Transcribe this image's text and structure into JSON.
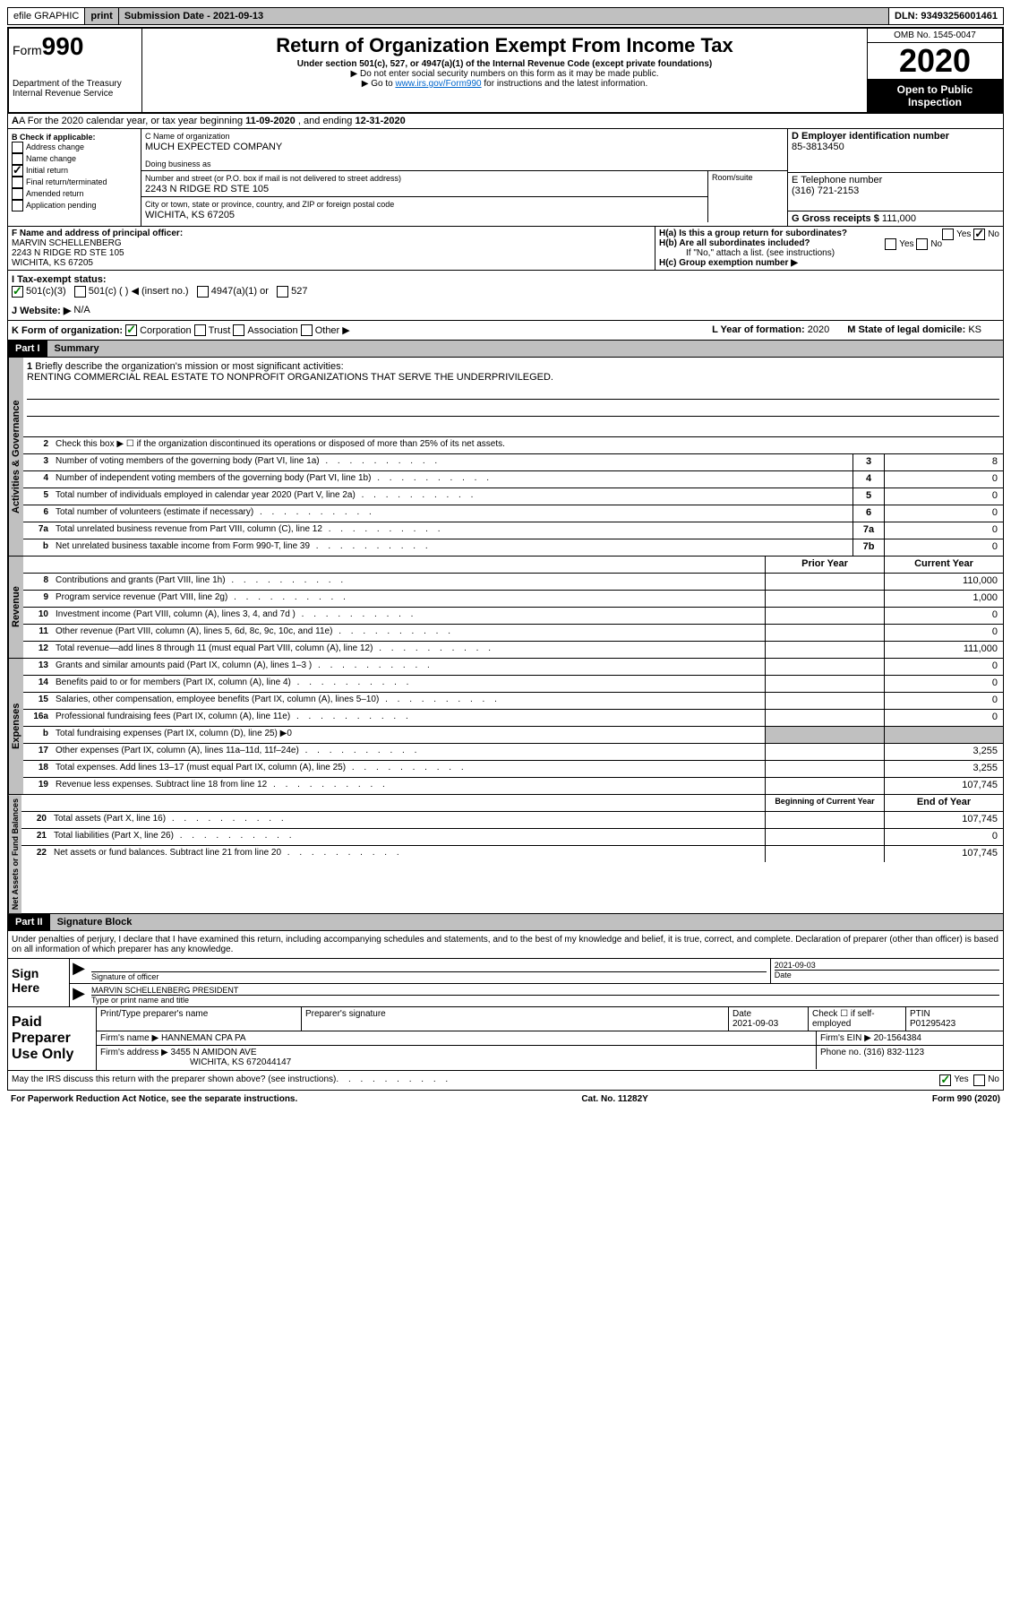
{
  "top": {
    "efile": "efile GRAPHIC",
    "print": "print",
    "submission": "Submission Date - 2021-09-13",
    "dln": "DLN: 93493256001461"
  },
  "header": {
    "form_prefix": "Form",
    "form_num": "990",
    "dept": "Department of the Treasury\nInternal Revenue Service",
    "title": "Return of Organization Exempt From Income Tax",
    "subtitle": "Under section 501(c), 527, or 4947(a)(1) of the Internal Revenue Code (except private foundations)",
    "note1": "▶ Do not enter social security numbers on this form as it may be made public.",
    "note2_pre": "▶ Go to ",
    "note2_link": "www.irs.gov/Form990",
    "note2_post": " for instructions and the latest information.",
    "omb": "OMB No. 1545-0047",
    "year": "2020",
    "open": "Open to Public Inspection"
  },
  "rowA": {
    "text_pre": "A For the 2020 calendar year, or tax year beginning ",
    "begin": "11-09-2020",
    "mid": " , and ending ",
    "end": "12-31-2020"
  },
  "blockB": {
    "label": "B Check if applicable:",
    "items": [
      "Address change",
      "Name change",
      "Initial return",
      "Final return/terminated",
      "Amended return",
      "Application pending"
    ],
    "checked_idx": 2
  },
  "blockC": {
    "name_label": "C Name of organization",
    "name": "MUCH EXPECTED COMPANY",
    "dba_label": "Doing business as",
    "addr_label": "Number and street (or P.O. box if mail is not delivered to street address)",
    "addr": "2243 N RIDGE RD STE 105",
    "room_label": "Room/suite",
    "city_label": "City or town, state or province, country, and ZIP or foreign postal code",
    "city": "WICHITA, KS  67205"
  },
  "blockD": {
    "label": "D Employer identification number",
    "value": "85-3813450"
  },
  "blockE": {
    "label": "E Telephone number",
    "value": "(316) 721-2153"
  },
  "blockG": {
    "label": "G Gross receipts $",
    "value": "111,000"
  },
  "blockF": {
    "label": "F Name and address of principal officer:",
    "name": "MARVIN SCHELLENBERG",
    "addr": "2243 N RIDGE RD STE 105",
    "city": "WICHITA, KS  67205"
  },
  "blockH": {
    "a": "H(a) Is this a group return for subordinates?",
    "b": "H(b) Are all subordinates included?",
    "b_note": "If \"No,\" attach a list. (see instructions)",
    "c": "H(c) Group exemption number ▶"
  },
  "rowI": {
    "label": "I    Tax-exempt status:",
    "opts": [
      "501(c)(3)",
      "501(c) (  ) ◀ (insert no.)",
      "4947(a)(1) or",
      "527"
    ]
  },
  "rowJ": {
    "label": "J    Website: ▶",
    "value": "N/A"
  },
  "rowK": {
    "label": "K Form of organization:",
    "opts": [
      "Corporation",
      "Trust",
      "Association",
      "Other ▶"
    ],
    "l_label": "L Year of formation:",
    "l_val": "2020",
    "m_label": "M State of legal domicile:",
    "m_val": "KS"
  },
  "part1": {
    "header": "Part I",
    "title": "Summary"
  },
  "mission": {
    "num": "1",
    "label": "Briefly describe the organization's mission or most significant activities:",
    "text": "RENTING COMMERCIAL REAL ESTATE TO NONPROFIT ORGANIZATIONS THAT SERVE THE UNDERPRIVILEGED."
  },
  "governance": {
    "side": "Activities & Governance",
    "rows": [
      {
        "n": "2",
        "t": "Check this box ▶ ☐ if the organization discontinued its operations or disposed of more than 25% of its net assets."
      },
      {
        "n": "3",
        "t": "Number of voting members of the governing body (Part VI, line 1a)",
        "c": "3",
        "v": "8"
      },
      {
        "n": "4",
        "t": "Number of independent voting members of the governing body (Part VI, line 1b)",
        "c": "4",
        "v": "0"
      },
      {
        "n": "5",
        "t": "Total number of individuals employed in calendar year 2020 (Part V, line 2a)",
        "c": "5",
        "v": "0"
      },
      {
        "n": "6",
        "t": "Total number of volunteers (estimate if necessary)",
        "c": "6",
        "v": "0"
      },
      {
        "n": "7a",
        "t": "Total unrelated business revenue from Part VIII, column (C), line 12",
        "c": "7a",
        "v": "0"
      },
      {
        "n": "b",
        "t": "Net unrelated business taxable income from Form 990-T, line 39",
        "c": "7b",
        "v": "0"
      }
    ]
  },
  "revenue": {
    "side": "Revenue",
    "header_prior": "Prior Year",
    "header_current": "Current Year",
    "rows": [
      {
        "n": "8",
        "t": "Contributions and grants (Part VIII, line 1h)",
        "p": "",
        "c": "110,000"
      },
      {
        "n": "9",
        "t": "Program service revenue (Part VIII, line 2g)",
        "p": "",
        "c": "1,000"
      },
      {
        "n": "10",
        "t": "Investment income (Part VIII, column (A), lines 3, 4, and 7d )",
        "p": "",
        "c": "0"
      },
      {
        "n": "11",
        "t": "Other revenue (Part VIII, column (A), lines 5, 6d, 8c, 9c, 10c, and 11e)",
        "p": "",
        "c": "0"
      },
      {
        "n": "12",
        "t": "Total revenue—add lines 8 through 11 (must equal Part VIII, column (A), line 12)",
        "p": "",
        "c": "111,000"
      }
    ]
  },
  "expenses": {
    "side": "Expenses",
    "rows": [
      {
        "n": "13",
        "t": "Grants and similar amounts paid (Part IX, column (A), lines 1–3 )",
        "p": "",
        "c": "0"
      },
      {
        "n": "14",
        "t": "Benefits paid to or for members (Part IX, column (A), line 4)",
        "p": "",
        "c": "0"
      },
      {
        "n": "15",
        "t": "Salaries, other compensation, employee benefits (Part IX, column (A), lines 5–10)",
        "p": "",
        "c": "0"
      },
      {
        "n": "16a",
        "t": "Professional fundraising fees (Part IX, column (A), line 11e)",
        "p": "",
        "c": "0"
      },
      {
        "n": "b",
        "t": "Total fundraising expenses (Part IX, column (D), line 25) ▶0",
        "shaded": true
      },
      {
        "n": "17",
        "t": "Other expenses (Part IX, column (A), lines 11a–11d, 11f–24e)",
        "p": "",
        "c": "3,255"
      },
      {
        "n": "18",
        "t": "Total expenses. Add lines 13–17 (must equal Part IX, column (A), line 25)",
        "p": "",
        "c": "3,255"
      },
      {
        "n": "19",
        "t": "Revenue less expenses. Subtract line 18 from line 12",
        "p": "",
        "c": "107,745"
      }
    ]
  },
  "netassets": {
    "side": "Net Assets or Fund Balances",
    "header_begin": "Beginning of Current Year",
    "header_end": "End of Year",
    "rows": [
      {
        "n": "20",
        "t": "Total assets (Part X, line 16)",
        "p": "",
        "c": "107,745"
      },
      {
        "n": "21",
        "t": "Total liabilities (Part X, line 26)",
        "p": "",
        "c": "0"
      },
      {
        "n": "22",
        "t": "Net assets or fund balances. Subtract line 21 from line 20",
        "p": "",
        "c": "107,745"
      }
    ]
  },
  "part2": {
    "header": "Part II",
    "title": "Signature Block"
  },
  "declaration": "Under penalties of perjury, I declare that I have examined this return, including accompanying schedules and statements, and to the best of my knowledge and belief, it is true, correct, and complete. Declaration of preparer (other than officer) is based on all information of which preparer has any knowledge.",
  "sign": {
    "left": "Sign Here",
    "sig_label": "Signature of officer",
    "date": "2021-09-03",
    "date_label": "Date",
    "name": "MARVIN SCHELLENBERG  PRESIDENT",
    "name_label": "Type or print name and title"
  },
  "preparer": {
    "left": "Paid Preparer Use Only",
    "h1": "Print/Type preparer's name",
    "h2": "Preparer's signature",
    "h3": "Date",
    "date": "2021-09-03",
    "h4": "Check ☐ if self-employed",
    "h5": "PTIN",
    "ptin": "P01295423",
    "firm_label": "Firm's name    ▶",
    "firm": "HANNEMAN CPA PA",
    "ein_label": "Firm's EIN ▶",
    "ein": "20-1564384",
    "addr_label": "Firm's address ▶",
    "addr": "3455 N AMIDON AVE",
    "city": "WICHITA, KS  672044147",
    "phone_label": "Phone no.",
    "phone": "(316) 832-1123"
  },
  "footer": {
    "discuss": "May the IRS discuss this return with the preparer shown above? (see instructions)",
    "paperwork": "For Paperwork Reduction Act Notice, see the separate instructions.",
    "cat": "Cat. No. 11282Y",
    "form": "Form 990 (2020)"
  }
}
